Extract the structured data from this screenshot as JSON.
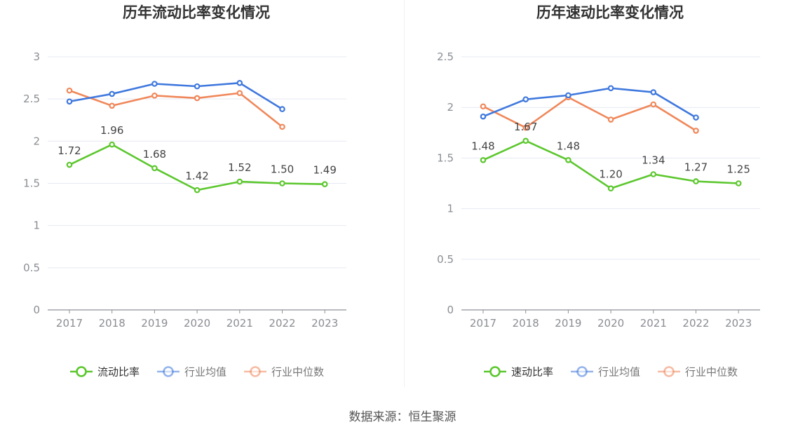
{
  "source_label": "数据来源：恒生聚源",
  "colors": {
    "primary": "#5cc72e",
    "avg": "#3f78de",
    "median": "#f0875a",
    "axis_text": "#8a8d93",
    "grid": "#e6e9f2"
  },
  "chart_data": [
    {
      "type": "line",
      "title": "历年流动比率变化情况",
      "categories": [
        "2017",
        "2018",
        "2019",
        "2020",
        "2021",
        "2022",
        "2023"
      ],
      "ylim": [
        0,
        3
      ],
      "yticks": [
        "0",
        "0.5",
        "1",
        "1.5",
        "2",
        "2.5",
        "3"
      ],
      "grid": true,
      "legend_position": "bottom",
      "series": [
        {
          "name": "流动比率",
          "values": [
            1.72,
            1.96,
            1.68,
            1.42,
            1.52,
            1.5,
            1.49
          ],
          "labels": [
            "1.72",
            "1.96",
            "1.68",
            "1.42",
            "1.52",
            "1.50",
            "1.49"
          ]
        },
        {
          "name": "行业均值",
          "values": [
            2.47,
            2.56,
            2.68,
            2.65,
            2.69,
            2.38,
            null
          ]
        },
        {
          "name": "行业中位数",
          "values": [
            2.6,
            2.42,
            2.54,
            2.51,
            2.57,
            2.17,
            null
          ]
        }
      ]
    },
    {
      "type": "line",
      "title": "历年速动比率变化情况",
      "categories": [
        "2017",
        "2018",
        "2019",
        "2020",
        "2021",
        "2022",
        "2023"
      ],
      "ylim": [
        0,
        2.5
      ],
      "yticks": [
        "0",
        "0.5",
        "1",
        "1.5",
        "2",
        "2.5"
      ],
      "grid": true,
      "legend_position": "bottom",
      "series": [
        {
          "name": "速动比率",
          "values": [
            1.48,
            1.67,
            1.48,
            1.2,
            1.34,
            1.27,
            1.25
          ],
          "labels": [
            "1.48",
            "1.67",
            "1.48",
            "1.20",
            "1.34",
            "1.27",
            "1.25"
          ]
        },
        {
          "name": "行业均值",
          "values": [
            1.91,
            2.08,
            2.12,
            2.19,
            2.15,
            1.9,
            null
          ]
        },
        {
          "name": "行业中位数",
          "values": [
            2.01,
            1.8,
            2.1,
            1.88,
            2.03,
            1.77,
            null
          ]
        }
      ]
    }
  ]
}
